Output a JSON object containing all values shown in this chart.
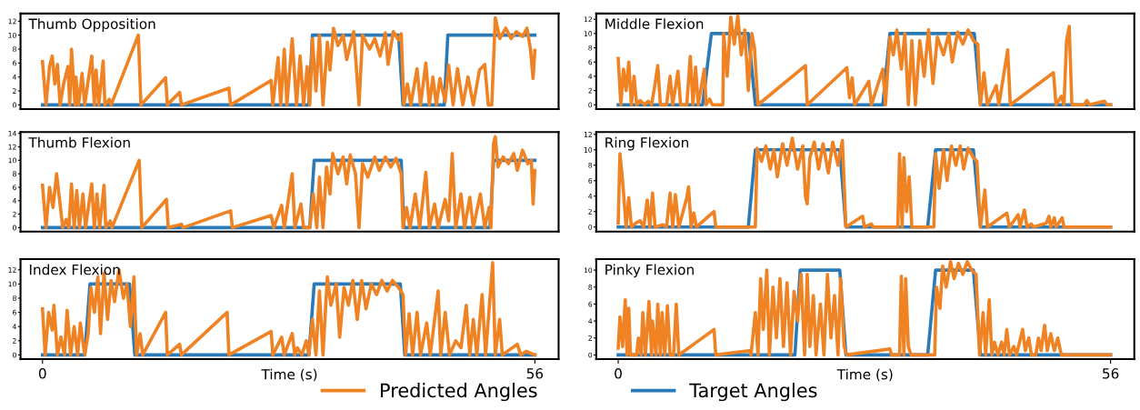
{
  "chart_data": [
    {
      "type": "line",
      "title": "Thumb Opposition",
      "xlim": [
        -2.5,
        58.7
      ],
      "ylim": [
        -0.6,
        13.1
      ],
      "yticks": [
        0,
        2,
        4,
        6,
        8,
        10,
        12
      ],
      "tick_labels": "y",
      "grid": false,
      "legend": "bottom",
      "series": [
        {
          "name": "Predicted Angles",
          "color": "#ef8223",
          "x": [
            0,
            0.4,
            0.8,
            1.1,
            1.4,
            1.7,
            2.0,
            2.4,
            2.9,
            3.1,
            3.3,
            3.7,
            3.8,
            4.1,
            4.5,
            4.8,
            5.6,
            5.9,
            6.1,
            6.4,
            6.9,
            7.1,
            7.6,
            7.8,
            10.9,
            11.2,
            14.0,
            14.2,
            15.6,
            15.8,
            21.2,
            21.4,
            26.0,
            26.2,
            26.8,
            27.1,
            27.5,
            27.8,
            28.4,
            28.9,
            29.3,
            29.7,
            30.1,
            30.4,
            30.7,
            31.1,
            31.5,
            31.9,
            32.4,
            32.7,
            33.1,
            33.6,
            34.2,
            34.6,
            35.4,
            36.0,
            36.4,
            37.2,
            37.8,
            38.4,
            39.0,
            39.3,
            39.9,
            40.5,
            40.8,
            41.1,
            41.5,
            41.9,
            42.6,
            43.0,
            43.6,
            44.0,
            44.4,
            44.8,
            45.2,
            45.8,
            46.2,
            46.7,
            47.2,
            47.8,
            48.4,
            49.0,
            49.7,
            50.3,
            50.7,
            51.1,
            51.5,
            52.0,
            52.7,
            53.3,
            53.9,
            54.6,
            55.1,
            55.5,
            55.8,
            56.0
          ],
          "values": [
            6.2,
            0,
            5.5,
            7,
            3,
            5.8,
            0,
            3,
            5.5,
            0,
            8,
            0,
            4,
            0,
            4.5,
            0,
            7,
            0,
            5,
            0,
            6.3,
            0,
            0.8,
            0,
            10,
            0,
            3.9,
            0,
            1.8,
            0,
            2.4,
            0,
            3.5,
            0,
            6.8,
            0,
            8,
            0,
            9.5,
            0,
            7,
            0,
            5.5,
            0,
            9.5,
            2,
            10,
            0,
            9,
            5,
            11,
            8.5,
            10,
            6.5,
            10.5,
            0,
            10,
            8,
            9.5,
            7,
            10.3,
            5.8,
            10.5,
            9.3,
            10.2,
            0,
            3,
            0,
            5.2,
            0,
            6,
            0,
            4,
            0,
            3.8,
            0.5,
            5.7,
            0,
            5.2,
            0,
            4,
            0,
            5,
            5.8,
            0,
            0,
            12.5,
            9.5,
            11,
            9.5,
            10.5,
            9.8,
            11,
            8,
            3.8,
            7.8
          ]
        },
        {
          "name": "Target Angles",
          "color": "#2a7ab8",
          "x": [
            0,
            30.3,
            30.7,
            40.5,
            41.0,
            45.7,
            46.1,
            56
          ],
          "values": [
            0,
            0,
            10,
            10,
            0,
            0,
            10,
            10
          ]
        }
      ]
    },
    {
      "type": "line",
      "title": "Thumb Flexion",
      "xlim": [
        -2.5,
        58.7
      ],
      "ylim": [
        -0.6,
        14.2
      ],
      "yticks": [
        0,
        2,
        4,
        6,
        8,
        10,
        12,
        14
      ],
      "tick_labels": "y",
      "grid": false,
      "series": [
        {
          "color": "#ef8223",
          "x": [
            0,
            0.4,
            0.8,
            1.2,
            1.6,
            2.0,
            2.3,
            2.7,
            3.0,
            3.3,
            3.6,
            3.9,
            4.2,
            4.6,
            4.9,
            5.6,
            5.9,
            6.2,
            6.5,
            7.0,
            7.2,
            7.7,
            7.9,
            11.0,
            11.3,
            14.1,
            14.3,
            15.8,
            16.0,
            21.4,
            21.6,
            26.0,
            26.3,
            27.2,
            27.5,
            28.4,
            28.7,
            29.4,
            29.7,
            30.4,
            30.8,
            31.2,
            31.5,
            31.9,
            32.3,
            32.7,
            33.0,
            33.6,
            34.2,
            34.6,
            35.0,
            35.6,
            36.0,
            36.4,
            37.0,
            37.8,
            38.3,
            39.0,
            39.6,
            40.2,
            40.8,
            41.0,
            41.4,
            41.8,
            42.4,
            42.9,
            43.6,
            44.0,
            44.6,
            45.0,
            45.8,
            46.2,
            46.6,
            47.0,
            47.6,
            48.0,
            48.6,
            49.0,
            49.8,
            50.3,
            50.8,
            51.0,
            51.3,
            51.5,
            51.8,
            52.4,
            53.0,
            53.6,
            54.0,
            54.6,
            55.2,
            55.6,
            55.8,
            56.0
          ],
          "values": [
            6.3,
            0,
            6,
            3,
            8,
            3.5,
            0,
            1.2,
            0,
            6.5,
            0,
            5.5,
            0,
            5,
            0,
            6.5,
            0,
            5,
            0,
            6.3,
            0,
            1,
            0,
            10,
            0,
            4.2,
            0,
            0.5,
            0,
            2.5,
            0,
            1.8,
            0,
            3.3,
            0,
            8,
            0,
            3.5,
            0,
            0,
            5,
            0,
            7.5,
            0,
            9,
            5,
            11,
            8,
            10.5,
            6.5,
            10.8,
            8,
            0,
            9.5,
            7.5,
            10.5,
            8.5,
            10.5,
            9,
            10.3,
            8,
            0,
            3,
            0,
            5,
            0,
            8.2,
            0,
            3.5,
            0,
            4.2,
            1,
            11,
            0,
            5,
            0,
            4.5,
            0,
            5,
            0,
            3,
            0,
            12.5,
            13.5,
            9,
            10.5,
            9.5,
            11,
            8.5,
            11.5,
            9.5,
            10,
            3.5,
            8.5
          ]
        },
        {
          "color": "#2a7ab8",
          "x": [
            0,
            30.4,
            30.9,
            40.8,
            41.1,
            50.9,
            51.3,
            56
          ],
          "values": [
            0,
            0,
            10,
            10,
            0,
            0,
            10,
            10
          ]
        }
      ]
    },
    {
      "type": "line",
      "title": "Index Flexion",
      "xlabel": "Time (s)",
      "xlim": [
        -2.5,
        58.7
      ],
      "ylim": [
        -0.6,
        13.5
      ],
      "xticks": [
        0,
        56
      ],
      "yticks": [
        0,
        2,
        4,
        6,
        8,
        10,
        12
      ],
      "grid": false,
      "series": [
        {
          "color": "#ef8223",
          "x": [
            0,
            0.3,
            0.7,
            1.1,
            1.3,
            1.7,
            2.1,
            2.5,
            2.8,
            3.2,
            3.6,
            4.0,
            4.3,
            4.8,
            5.2,
            5.5,
            5.9,
            6.3,
            6.6,
            7.0,
            7.4,
            7.8,
            8.2,
            8.7,
            9.2,
            9.6,
            10.0,
            10.4,
            10.7,
            11.1,
            11.4,
            14.0,
            14.2,
            15.6,
            15.8,
            21.0,
            21.2,
            26.0,
            26.2,
            27.2,
            27.5,
            28.4,
            28.7,
            29.0,
            29.5,
            30.0,
            30.3,
            30.7,
            31.1,
            31.5,
            31.9,
            32.4,
            32.8,
            33.4,
            33.8,
            34.3,
            34.8,
            35.3,
            35.8,
            36.3,
            36.8,
            37.4,
            38.0,
            38.6,
            39.2,
            39.8,
            40.5,
            41.0,
            41.3,
            41.7,
            42.1,
            42.6,
            43.0,
            43.7,
            44.1,
            45.0,
            45.3,
            45.8,
            46.3,
            47.0,
            47.6,
            48.2,
            48.6,
            49.0,
            49.4,
            50.0,
            50.4,
            51.2,
            51.5,
            52.0,
            52.3,
            54.0,
            54.4,
            55.0,
            56.0
          ],
          "values": [
            6.5,
            0,
            6,
            3.5,
            7,
            0,
            2.5,
            0,
            6.3,
            0,
            4,
            0,
            4.5,
            0,
            3,
            9.5,
            6,
            11,
            3,
            11.5,
            5,
            10.5,
            7.5,
            12,
            8,
            10,
            4,
            11,
            0,
            3,
            0,
            6,
            0,
            1.5,
            0,
            6,
            0,
            3.3,
            0,
            2.5,
            0,
            3,
            0,
            1,
            0,
            2,
            0,
            5,
            0,
            9,
            0,
            11,
            7,
            10,
            2.5,
            9.5,
            7,
            10.5,
            5,
            10.5,
            6.5,
            10,
            8.5,
            10.5,
            9,
            10.5,
            9.5,
            8.5,
            0,
            5.8,
            0,
            6,
            0,
            4.5,
            0,
            9,
            0,
            6,
            0,
            2,
            1,
            7,
            0,
            5,
            0,
            8.5,
            0,
            13,
            0,
            5,
            0,
            1.5,
            0,
            0.5,
            0
          ]
        },
        {
          "color": "#2a7ab8",
          "x": [
            0,
            4.8,
            5.4,
            9.9,
            10.5,
            30.3,
            30.9,
            40.7,
            41.2,
            56
          ],
          "values": [
            0,
            0,
            10,
            10,
            0,
            0,
            10,
            10,
            0,
            0
          ]
        }
      ]
    },
    {
      "type": "line",
      "title": "Middle Flexion",
      "xlim": [
        -2.5,
        58.7
      ],
      "ylim": [
        -0.6,
        12.8
      ],
      "yticks": [
        0,
        2,
        4,
        6,
        8,
        10,
        12
      ],
      "tick_labels": "y",
      "grid": false,
      "series": [
        {
          "color": "#ef8223",
          "x": [
            0,
            0.3,
            0.6,
            0.9,
            1.2,
            1.5,
            1.8,
            2.1,
            2.5,
            3.0,
            3.4,
            3.8,
            4.2,
            4.5,
            4.8,
            5.5,
            5.9,
            6.2,
            6.8,
            7.1,
            7.8,
            8.2,
            8.5,
            8.8,
            9.1,
            9.8,
            10.0,
            10.4,
            10.7,
            11.9,
            12.0,
            12.4,
            12.8,
            13.2,
            13.6,
            14.0,
            14.4,
            14.8,
            15.2,
            15.5,
            15.9,
            21.3,
            21.5,
            26.0,
            26.3,
            26.6,
            26.9,
            28.5,
            28.8,
            30.1,
            30.4,
            30.9,
            31.3,
            31.7,
            32.2,
            32.6,
            33.0,
            33.4,
            33.8,
            34.3,
            34.8,
            35.3,
            35.8,
            36.3,
            37.0,
            37.6,
            38.0,
            38.6,
            39.2,
            39.8,
            40.4,
            40.9,
            41.2,
            41.6,
            42.0,
            43.0,
            43.3,
            44.3,
            44.6,
            49.5,
            49.8,
            50.4,
            50.7,
            51.0,
            51.3,
            51.6,
            53.0,
            53.3,
            53.6,
            55.3,
            55.6,
            56.0
          ],
          "values": [
            6.5,
            0,
            5,
            2,
            6,
            0,
            4,
            0,
            0.6,
            0,
            0.5,
            0,
            3,
            5.5,
            0,
            0,
            4,
            0,
            4.7,
            0,
            0,
            6.8,
            0,
            5.3,
            0,
            5,
            0,
            0.8,
            0,
            0,
            10,
            4,
            12.3,
            8.5,
            12.5,
            7,
            10.5,
            2,
            10,
            8,
            0,
            5.5,
            0,
            5.2,
            1,
            3.8,
            0,
            3.3,
            0,
            5,
            0,
            9.5,
            7,
            10.5,
            5,
            10,
            0,
            9,
            0,
            9,
            4,
            10.5,
            3,
            9.5,
            7,
            10,
            6,
            10.2,
            8.5,
            10.5,
            9,
            8.5,
            0,
            4.5,
            0,
            2.7,
            0,
            7.7,
            0,
            4.5,
            0,
            1.2,
            0,
            9,
            11,
            0,
            0,
            0.6,
            0,
            0.5,
            0,
            0
          ]
        },
        {
          "color": "#2a7ab8",
          "x": [
            0,
            9.6,
            10.6,
            14.8,
            15.6,
            30.1,
            30.9,
            40.5,
            41.2,
            56
          ],
          "values": [
            0,
            0,
            10,
            10,
            0,
            0,
            10,
            10,
            0,
            0
          ]
        }
      ]
    },
    {
      "type": "line",
      "title": "Ring Flexion",
      "xlim": [
        -2.5,
        58.7
      ],
      "ylim": [
        -0.6,
        12.3
      ],
      "yticks": [
        0,
        2,
        4,
        6,
        8,
        10,
        12
      ],
      "tick_labels": "y",
      "grid": false,
      "series": [
        {
          "color": "#ef8223",
          "x": [
            0,
            0.2,
            0.5,
            0.7,
            0.9,
            1.2,
            1.5,
            2.0,
            2.5,
            2.9,
            3.3,
            3.6,
            3.9,
            4.2,
            5.1,
            5.5,
            5.9,
            6.2,
            6.5,
            6.9,
            7.8,
            8.0,
            8.3,
            8.6,
            8.9,
            10.9,
            11.1,
            15.6,
            15.8,
            16.3,
            16.8,
            17.3,
            17.7,
            18.1,
            18.7,
            19.2,
            19.8,
            20.4,
            21.0,
            21.3,
            21.5,
            21.8,
            22.3,
            22.8,
            23.3,
            23.9,
            24.4,
            25.0,
            25.5,
            25.9,
            27.8,
            28.0,
            28.8,
            29.0,
            31.8,
            32.0,
            32.3,
            32.5,
            32.8,
            33.1,
            33.4,
            35.9,
            36.1,
            36.5,
            37.0,
            37.4,
            37.9,
            38.4,
            38.9,
            39.3,
            39.8,
            40.4,
            40.8,
            41.2,
            41.7,
            42.0,
            44.2,
            44.5,
            45.5,
            45.7,
            46.2,
            46.5,
            47.0,
            47.2,
            48.7,
            49.0,
            49.2,
            49.6,
            49.8,
            50.5,
            50.7,
            56.0
          ],
          "values": [
            0.5,
            9.5,
            6,
            3,
            0,
            3.8,
            0,
            0.5,
            0.8,
            0,
            3.5,
            0,
            4.4,
            0,
            0.3,
            0,
            4.4,
            0,
            4.2,
            0,
            3.8,
            5.2,
            0,
            1.8,
            0,
            2,
            0,
            0,
            10.2,
            8.5,
            10.5,
            7.5,
            10,
            6.5,
            10.8,
            8,
            11.5,
            7.5,
            10.5,
            4,
            3,
            9,
            11,
            7.5,
            10.8,
            7,
            11,
            8,
            11.2,
            0,
            1.4,
            0,
            0.4,
            0,
            0,
            9.5,
            0,
            9,
            2,
            6.5,
            0,
            0,
            9.5,
            5,
            10,
            6,
            10.5,
            8,
            10.5,
            7.5,
            10.2,
            9,
            8.5,
            0,
            4.8,
            0,
            1.8,
            0,
            1.6,
            0,
            2.2,
            0,
            0.4,
            0,
            0.5,
            1.4,
            0,
            1.2,
            0,
            1.2,
            0,
            0
          ]
        },
        {
          "color": "#2a7ab8",
          "x": [
            0,
            14.8,
            15.6,
            25.2,
            25.9,
            35.2,
            36.1,
            40.4,
            41.2,
            56
          ],
          "values": [
            0,
            0,
            10,
            10,
            0,
            0,
            10,
            10,
            0,
            0
          ]
        }
      ]
    },
    {
      "type": "line",
      "title": "Pinky Flexion",
      "xlabel": "Time (s)",
      "xlim": [
        -2.5,
        58.7
      ],
      "ylim": [
        -0.5,
        11.3
      ],
      "xticks": [
        0,
        56
      ],
      "yticks": [
        0,
        2,
        4,
        6,
        8,
        10
      ],
      "grid": false,
      "series": [
        {
          "color": "#ef8223",
          "x": [
            0,
            0.2,
            0.5,
            0.8,
            1.0,
            1.2,
            1.4,
            2.1,
            2.3,
            2.6,
            2.8,
            3.1,
            3.5,
            3.8,
            3.9,
            4.3,
            4.5,
            4.8,
            5.0,
            5.3,
            5.6,
            5.9,
            6.3,
            6.6,
            6.9,
            10.9,
            11.1,
            14.9,
            15.1,
            15.6,
            15.9,
            16.2,
            16.5,
            16.9,
            17.2,
            17.6,
            18.0,
            18.4,
            18.8,
            19.2,
            19.6,
            20.0,
            20.4,
            20.8,
            21.2,
            21.5,
            21.8,
            22.2,
            22.5,
            23.0,
            23.4,
            23.8,
            24.2,
            24.6,
            25.0,
            25.3,
            25.7,
            26.0,
            30.9,
            31.1,
            32.0,
            32.2,
            32.5,
            32.7,
            33.0,
            33.3,
            36.0,
            36.2,
            36.6,
            36.9,
            37.3,
            37.8,
            38.2,
            38.7,
            39.2,
            39.7,
            40.2,
            40.7,
            41.1,
            41.5,
            41.8,
            42.2,
            42.5,
            42.8,
            43.2,
            43.6,
            43.9,
            44.2,
            44.5,
            45.0,
            45.3,
            46.0,
            46.3,
            46.7,
            47.0,
            47.5,
            47.8,
            48.1,
            48.5,
            48.8,
            49.2,
            49.6,
            50.0,
            50.4,
            56.0
          ],
          "values": [
            0.8,
            4.5,
            1,
            6.5,
            0,
            5.5,
            0,
            0,
            2,
            0,
            5,
            0,
            6.3,
            0,
            4,
            0,
            6,
            0,
            5,
            0,
            5.8,
            0,
            0,
            6,
            0,
            3,
            0,
            0.5,
            0,
            5,
            0,
            9,
            3,
            10,
            0,
            8,
            2,
            9,
            1,
            8.5,
            0,
            7.5,
            4,
            9.5,
            0,
            9.5,
            1,
            7,
            0,
            6,
            0,
            9.5,
            2,
            7,
            0,
            9,
            1,
            0,
            0.7,
            0,
            0,
            9.3,
            0,
            9,
            1,
            0,
            0,
            8,
            5.5,
            10.5,
            8,
            11,
            9,
            10.8,
            9.5,
            11,
            10,
            9.5,
            0,
            5,
            0,
            6.5,
            0,
            1.5,
            0,
            1.5,
            0,
            3,
            0,
            1,
            0,
            3,
            0.5,
            2,
            0,
            0,
            2,
            0.5,
            3.5,
            0.5,
            2.5,
            0.5,
            2,
            0,
            0
          ]
        },
        {
          "color": "#2a7ab8",
          "x": [
            0,
            20.1,
            20.7,
            25.2,
            25.9,
            35.2,
            36.1,
            40.4,
            41.2,
            56
          ],
          "values": [
            0,
            0,
            10,
            10,
            0,
            0,
            10,
            10,
            0,
            0
          ]
        }
      ]
    }
  ]
}
